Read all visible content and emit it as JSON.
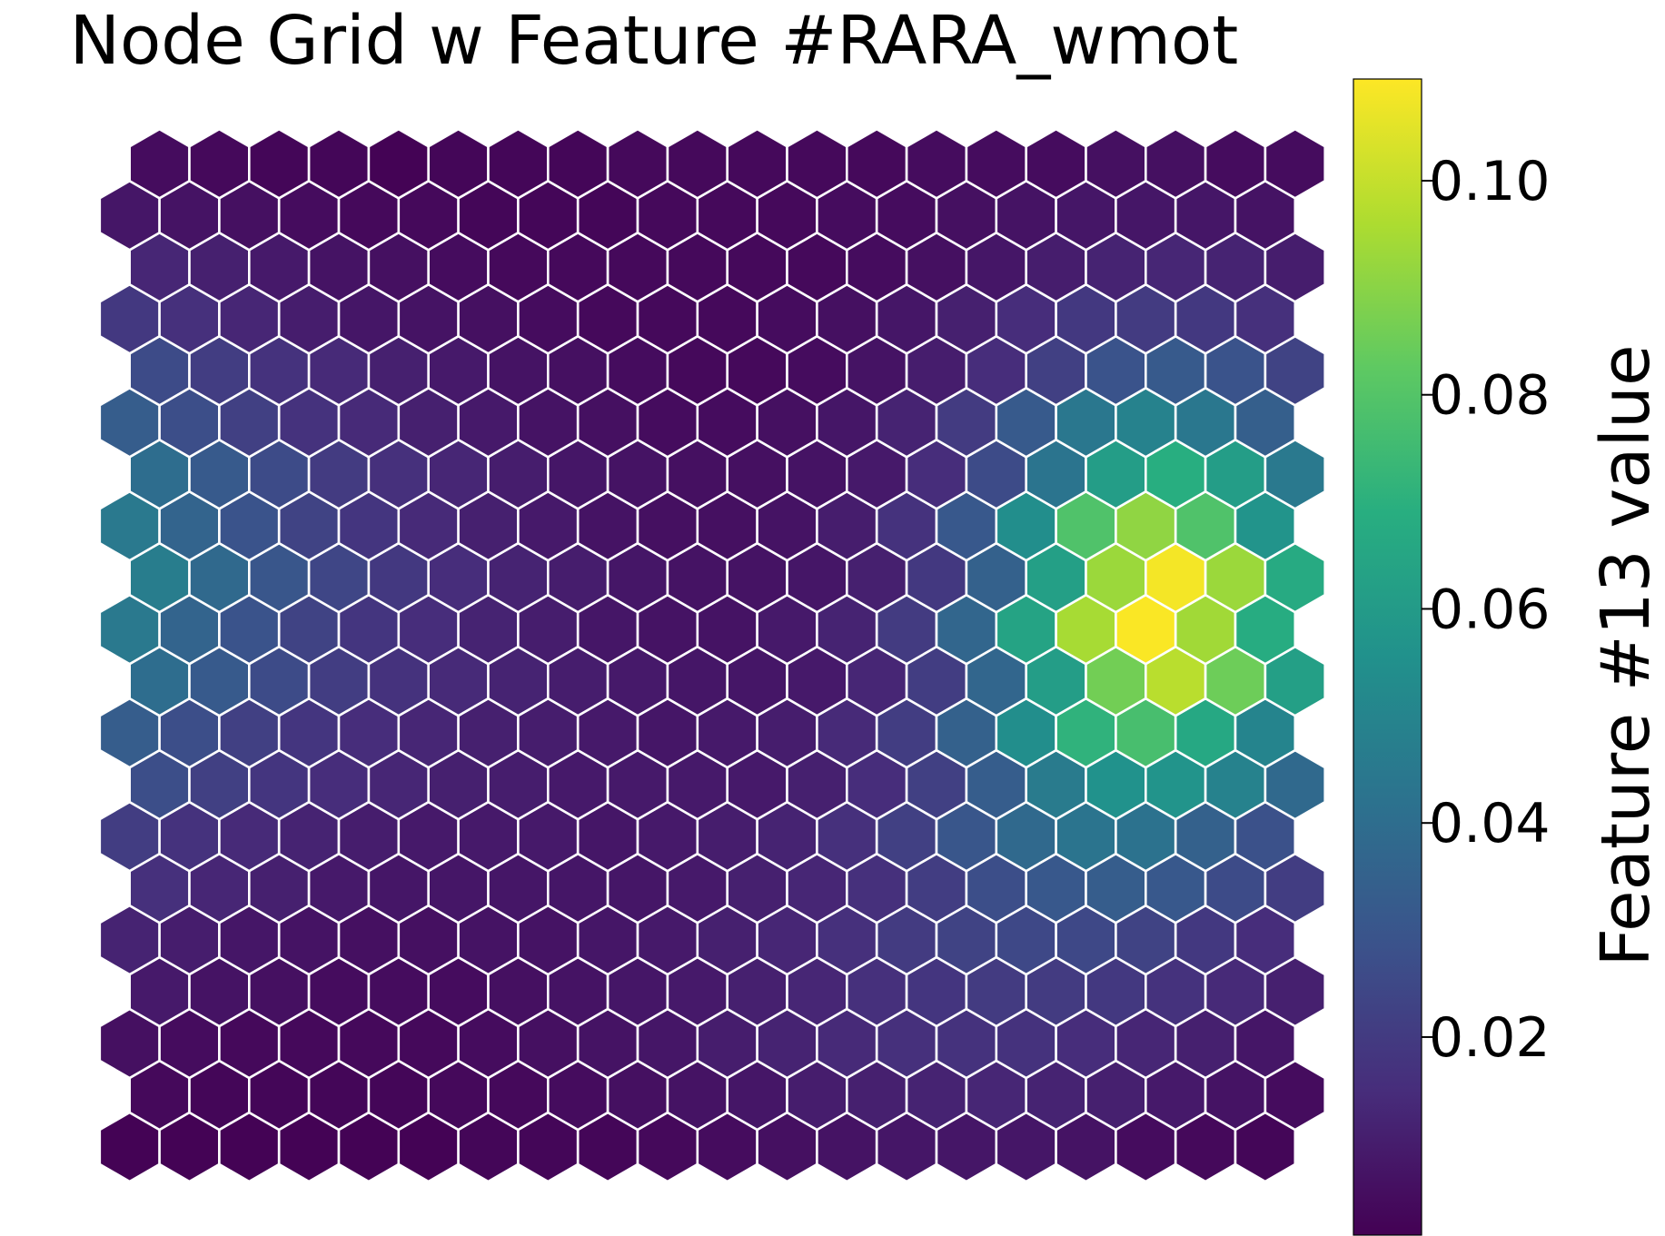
{
  "chart_data": {
    "type": "heatmap",
    "subtype": "hexagonal-grid",
    "title": "Node Grid w Feature #RARA_wmot",
    "colormap": "viridis",
    "colorbar": {
      "label": "Feature #13 value",
      "range": [
        0.0015,
        0.1095
      ],
      "ticks": [
        0.02,
        0.04,
        0.06,
        0.08,
        0.1
      ],
      "tick_labels": [
        "0.02",
        "0.04",
        "0.06",
        "0.08",
        "0.10"
      ],
      "placement": "right"
    },
    "grid": {
      "columns": 20,
      "rows": 20,
      "layout": "hexagonal, odd rows offset",
      "axes": "hidden"
    },
    "values": [
      [
        0.002,
        0.002,
        0.002,
        0.002,
        0.002,
        0.002,
        0.003,
        0.003,
        0.003,
        0.004,
        0.005,
        0.006,
        0.007,
        0.008,
        0.008,
        0.008,
        0.007,
        0.005,
        0.004,
        0.003
      ],
      [
        0.004,
        0.003,
        0.003,
        0.003,
        0.003,
        0.004,
        0.004,
        0.005,
        0.006,
        0.007,
        0.008,
        0.01,
        0.011,
        0.012,
        0.013,
        0.012,
        0.011,
        0.009,
        0.007,
        0.005
      ],
      [
        0.006,
        0.005,
        0.004,
        0.004,
        0.004,
        0.004,
        0.005,
        0.006,
        0.007,
        0.008,
        0.01,
        0.012,
        0.014,
        0.016,
        0.017,
        0.017,
        0.015,
        0.013,
        0.011,
        0.008
      ],
      [
        0.009,
        0.007,
        0.006,
        0.005,
        0.005,
        0.005,
        0.006,
        0.007,
        0.008,
        0.009,
        0.011,
        0.013,
        0.016,
        0.018,
        0.02,
        0.02,
        0.019,
        0.017,
        0.014,
        0.011
      ],
      [
        0.012,
        0.01,
        0.008,
        0.007,
        0.006,
        0.006,
        0.007,
        0.007,
        0.008,
        0.009,
        0.011,
        0.013,
        0.016,
        0.02,
        0.023,
        0.025,
        0.025,
        0.023,
        0.019,
        0.015
      ],
      [
        0.016,
        0.013,
        0.011,
        0.009,
        0.008,
        0.008,
        0.008,
        0.008,
        0.008,
        0.009,
        0.011,
        0.013,
        0.016,
        0.021,
        0.027,
        0.031,
        0.033,
        0.031,
        0.026,
        0.021
      ],
      [
        0.021,
        0.017,
        0.014,
        0.012,
        0.01,
        0.009,
        0.009,
        0.009,
        0.008,
        0.009,
        0.01,
        0.012,
        0.016,
        0.022,
        0.03,
        0.038,
        0.043,
        0.042,
        0.035,
        0.028
      ],
      [
        0.027,
        0.022,
        0.018,
        0.015,
        0.013,
        0.011,
        0.01,
        0.009,
        0.009,
        0.009,
        0.009,
        0.011,
        0.015,
        0.022,
        0.033,
        0.046,
        0.056,
        0.057,
        0.049,
        0.038
      ],
      [
        0.033,
        0.027,
        0.022,
        0.018,
        0.015,
        0.013,
        0.011,
        0.01,
        0.009,
        0.008,
        0.009,
        0.01,
        0.014,
        0.021,
        0.035,
        0.054,
        0.071,
        0.077,
        0.066,
        0.05
      ],
      [
        0.04,
        0.032,
        0.026,
        0.021,
        0.017,
        0.014,
        0.012,
        0.01,
        0.009,
        0.008,
        0.008,
        0.009,
        0.013,
        0.021,
        0.037,
        0.061,
        0.086,
        0.098,
        0.085,
        0.062
      ],
      [
        0.045,
        0.036,
        0.029,
        0.023,
        0.018,
        0.015,
        0.012,
        0.01,
        0.008,
        0.007,
        0.007,
        0.009,
        0.012,
        0.02,
        0.037,
        0.064,
        0.095,
        0.109,
        0.094,
        0.068
      ],
      [
        0.047,
        0.038,
        0.03,
        0.024,
        0.019,
        0.015,
        0.012,
        0.01,
        0.008,
        0.007,
        0.007,
        0.008,
        0.011,
        0.019,
        0.035,
        0.062,
        0.093,
        0.108,
        0.093,
        0.067
      ],
      [
        0.045,
        0.036,
        0.029,
        0.023,
        0.018,
        0.014,
        0.011,
        0.009,
        0.007,
        0.006,
        0.006,
        0.007,
        0.01,
        0.017,
        0.031,
        0.054,
        0.079,
        0.091,
        0.079,
        0.057
      ],
      [
        0.04,
        0.032,
        0.026,
        0.02,
        0.016,
        0.013,
        0.01,
        0.008,
        0.007,
        0.006,
        0.006,
        0.007,
        0.009,
        0.015,
        0.026,
        0.043,
        0.061,
        0.069,
        0.061,
        0.045
      ],
      [
        0.033,
        0.027,
        0.022,
        0.017,
        0.014,
        0.011,
        0.009,
        0.007,
        0.006,
        0.005,
        0.005,
        0.006,
        0.008,
        0.012,
        0.02,
        0.032,
        0.044,
        0.049,
        0.044,
        0.034
      ],
      [
        0.026,
        0.021,
        0.017,
        0.014,
        0.011,
        0.009,
        0.007,
        0.006,
        0.005,
        0.004,
        0.004,
        0.005,
        0.007,
        0.01,
        0.015,
        0.022,
        0.029,
        0.032,
        0.029,
        0.023
      ],
      [
        0.019,
        0.016,
        0.013,
        0.01,
        0.008,
        0.007,
        0.006,
        0.005,
        0.004,
        0.004,
        0.004,
        0.005,
        0.006,
        0.008,
        0.011,
        0.015,
        0.019,
        0.02,
        0.019,
        0.016
      ],
      [
        0.013,
        0.011,
        0.009,
        0.007,
        0.006,
        0.005,
        0.004,
        0.004,
        0.004,
        0.004,
        0.004,
        0.004,
        0.005,
        0.006,
        0.008,
        0.01,
        0.012,
        0.013,
        0.012,
        0.01
      ],
      [
        0.008,
        0.007,
        0.006,
        0.005,
        0.004,
        0.004,
        0.003,
        0.003,
        0.003,
        0.004,
        0.004,
        0.004,
        0.005,
        0.005,
        0.006,
        0.007,
        0.008,
        0.008,
        0.008,
        0.007
      ],
      [
        0.005,
        0.004,
        0.003,
        0.003,
        0.002,
        0.003,
        0.003,
        0.003,
        0.004,
        0.004,
        0.004,
        0.004,
        0.004,
        0.005,
        0.005,
        0.005,
        0.006,
        0.006,
        0.005,
        0.005
      ]
    ]
  }
}
